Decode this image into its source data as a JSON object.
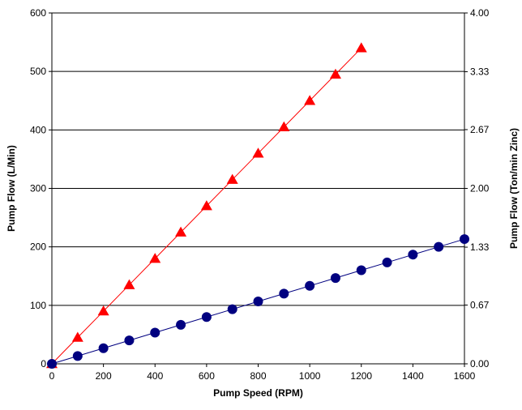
{
  "chart_data": {
    "type": "line",
    "title": "",
    "xlabel": "Pump Speed  (RPM)",
    "ylabel": "Pump Flow (L/Min)",
    "y2label": "Pump Flow (Ton/min Zinc)",
    "xlim": [
      0,
      1600
    ],
    "ylim": [
      0,
      600
    ],
    "y2lim": [
      0,
      4.0
    ],
    "x_ticks": [
      0,
      200,
      400,
      600,
      800,
      1000,
      1200,
      1400,
      1600
    ],
    "x_tick_labels": [
      "0",
      "200",
      "400",
      "600",
      "800",
      "1000",
      "1200",
      "1400",
      "1600"
    ],
    "y_ticks": [
      0,
      100,
      200,
      300,
      400,
      500,
      600
    ],
    "y_tick_labels": [
      "0",
      "100",
      "200",
      "300",
      "400",
      "500",
      "600"
    ],
    "y2_ticks": [
      0,
      0.67,
      1.33,
      2.0,
      2.67,
      3.33,
      4.0
    ],
    "y2_tick_labels": [
      "0.00",
      "0.67",
      "1.33",
      "2.00",
      "2.67",
      "3.33",
      "4.00"
    ],
    "grid": "horizontal",
    "legend": "none",
    "series": [
      {
        "color": "#ff0000",
        "marker": "triangle",
        "x": [
          0,
          100,
          200,
          300,
          400,
          500,
          600,
          700,
          800,
          900,
          1000,
          1100,
          1200
        ],
        "values": [
          0,
          45,
          90,
          135,
          180,
          225,
          270,
          315,
          360,
          405,
          450,
          495,
          540
        ]
      },
      {
        "color": "#000080",
        "marker": "circle",
        "x": [
          0,
          100,
          200,
          300,
          400,
          500,
          600,
          700,
          800,
          900,
          1000,
          1100,
          1200,
          1300,
          1400,
          1500,
          1600
        ],
        "values": [
          0,
          13.3,
          26.7,
          40,
          53.3,
          66.7,
          80,
          93.3,
          106.7,
          120,
          133.3,
          146.7,
          160,
          173.3,
          186.7,
          200,
          213.3
        ]
      }
    ]
  }
}
